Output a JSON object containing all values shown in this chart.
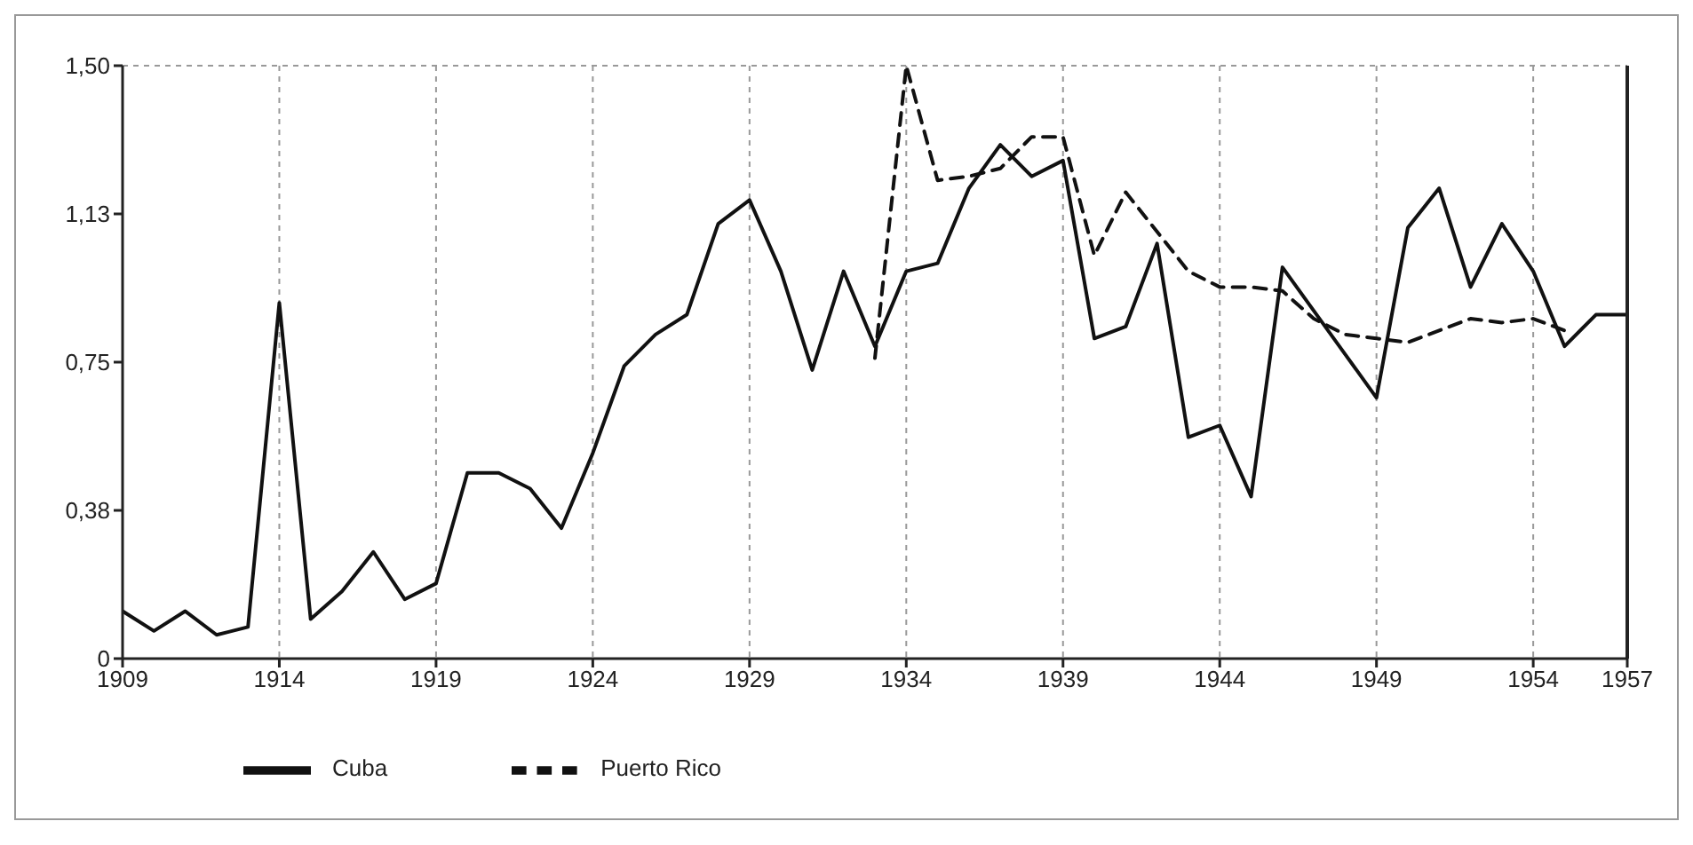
{
  "chart_data": {
    "type": "line",
    "x": [
      1909,
      1910,
      1911,
      1912,
      1913,
      1914,
      1915,
      1916,
      1917,
      1918,
      1919,
      1920,
      1921,
      1922,
      1923,
      1924,
      1925,
      1926,
      1927,
      1928,
      1929,
      1930,
      1931,
      1932,
      1933,
      1934,
      1935,
      1936,
      1937,
      1938,
      1939,
      1940,
      1941,
      1942,
      1943,
      1944,
      1945,
      1946,
      1947,
      1948,
      1949,
      1950,
      1951,
      1952,
      1953,
      1954,
      1955,
      1956,
      1957
    ],
    "series": [
      {
        "name": "Cuba",
        "color": "#111111",
        "line_style": "solid",
        "values": [
          0.12,
          0.07,
          0.12,
          0.06,
          0.08,
          0.9,
          0.1,
          0.17,
          0.27,
          0.15,
          0.19,
          0.47,
          0.47,
          0.43,
          0.33,
          0.52,
          0.74,
          0.82,
          0.87,
          1.1,
          1.16,
          0.98,
          0.73,
          0.98,
          0.79,
          0.98,
          1.0,
          1.19,
          1.3,
          1.22,
          1.26,
          0.81,
          0.84,
          1.05,
          0.56,
          0.59,
          0.41,
          0.99,
          0.88,
          0.77,
          0.66,
          1.09,
          1.19,
          0.94,
          1.1,
          0.98,
          0.79,
          0.87,
          0.87
        ]
      },
      {
        "name": "Puerto Rico",
        "color": "#111111",
        "line_style": "dashed",
        "x": [
          1933,
          1934,
          1935,
          1936,
          1937,
          1938,
          1939,
          1940,
          1941,
          1942,
          1943,
          1944,
          1945,
          1946,
          1947,
          1948,
          1949,
          1950,
          1951,
          1952,
          1953,
          1954,
          1955
        ],
        "values": [
          0.76,
          1.5,
          1.21,
          1.22,
          1.24,
          1.32,
          1.32,
          1.02,
          1.18,
          1.08,
          0.98,
          0.94,
          0.94,
          0.93,
          0.86,
          0.82,
          0.81,
          0.8,
          0.83,
          0.86,
          0.85,
          0.86,
          0.83
        ]
      }
    ],
    "xlim": [
      1909,
      1957
    ],
    "xticks": [
      1909,
      1914,
      1919,
      1924,
      1929,
      1934,
      1939,
      1944,
      1949,
      1954,
      1957
    ],
    "ylim": [
      0,
      1.5
    ],
    "yticks": [
      0,
      {
        "value": 0.375,
        "label": "0,38"
      },
      {
        "value": 0.75,
        "label": "0,75"
      },
      {
        "value": 1.125,
        "label": "1,13"
      },
      {
        "value": 1.5,
        "label": "1,50"
      }
    ],
    "grid": true,
    "legend": "bottom left"
  }
}
